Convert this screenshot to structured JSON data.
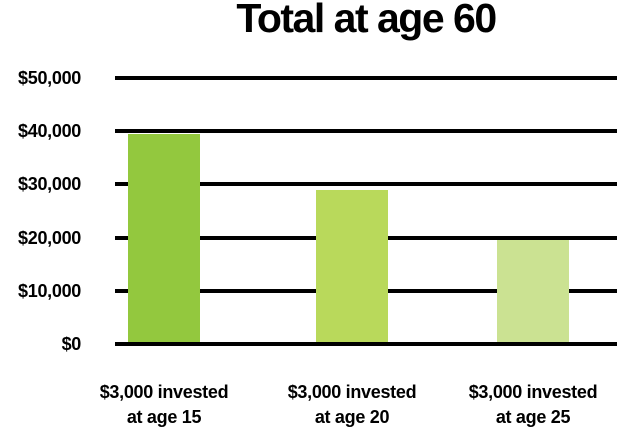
{
  "page": {
    "background": "#ffffff"
  },
  "chart_data": {
    "type": "bar",
    "title": "Total at age 60",
    "categories": [
      "$3,000 invested\nat age 15",
      "$3,000 invested\nat age 20",
      "$3,000 invested\nat age 25"
    ],
    "values": [
      39500,
      29000,
      19500
    ],
    "xlabel": "",
    "ylabel": "",
    "ylim": [
      0,
      50000
    ],
    "yticks": [
      0,
      10000,
      20000,
      30000,
      40000,
      50000
    ],
    "ytick_labels": [
      "$0",
      "$10,000",
      "$20,000",
      "$30,000",
      "$40,000",
      "$50,000"
    ],
    "grid": "horizontal",
    "legend": "none",
    "bar_colors": [
      "#93c83e",
      "#b9d95b",
      "#cbe292"
    ],
    "grid_color": "#000000",
    "text_color": "#000000"
  }
}
